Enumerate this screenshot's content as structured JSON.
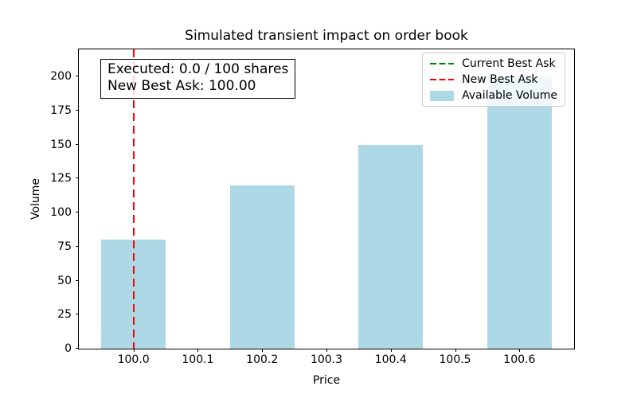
{
  "title": "Simulated transient impact on order book",
  "axes": {
    "xlabel": "Price",
    "ylabel": "Volume",
    "x_tick_labels": [
      "100.0",
      "100.1",
      "100.2",
      "100.3",
      "100.4",
      "100.5",
      "100.6"
    ],
    "y_tick_labels": [
      "0",
      "25",
      "50",
      "75",
      "100",
      "125",
      "150",
      "175",
      "200"
    ]
  },
  "annotation": {
    "line1": "Executed: 0.0 / 100 shares",
    "line2": "New Best Ask: 100.00"
  },
  "legend": {
    "items": [
      {
        "name": "current-best-ask",
        "label": "Current Best Ask",
        "swatch": "dashed-line",
        "color": "#008000"
      },
      {
        "name": "new-best-ask",
        "label": "New Best Ask",
        "swatch": "dashed-line",
        "color": "#ff0000"
      },
      {
        "name": "available-volume",
        "label": "Available Volume",
        "swatch": "patch",
        "color": "#add8e6"
      }
    ]
  },
  "colors": {
    "bar": "#add8e6",
    "current_best_ask_line": "#008000",
    "new_best_ask_line": "#ff0000",
    "spine": "#000000"
  },
  "chart_data": {
    "type": "bar",
    "title": "Simulated transient impact on order book",
    "xlabel": "Price",
    "ylabel": "Volume",
    "x": [
      100.0,
      100.2,
      100.4,
      100.6
    ],
    "values": [
      80,
      120,
      150,
      200
    ],
    "series_name": "Available Volume",
    "bar_width": 0.1,
    "bar_color": "#add8e6",
    "xlim": [
      99.915,
      100.685
    ],
    "ylim": [
      0,
      220
    ],
    "x_tick_values": [
      100.0,
      100.1,
      100.2,
      100.3,
      100.4,
      100.5,
      100.6
    ],
    "y_tick_values": [
      0,
      25,
      50,
      75,
      100,
      125,
      150,
      175,
      200
    ],
    "vlines": [
      {
        "x": 100.0,
        "color": "#008000",
        "style": "dashed",
        "label": "Current Best Ask"
      },
      {
        "x": 100.0,
        "color": "#ff0000",
        "style": "dashed",
        "label": "New Best Ask"
      }
    ],
    "grid": false,
    "legend_position": "upper right",
    "annotations": [
      "Executed: 0.0 / 100 shares",
      "New Best Ask: 100.00"
    ]
  }
}
